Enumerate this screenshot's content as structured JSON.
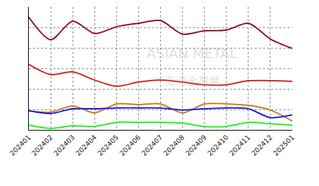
{
  "chart_data": {
    "type": "line",
    "categories": [
      "202401",
      "202402",
      "202403",
      "202404",
      "202405",
      "202406",
      "202407",
      "202408",
      "202409",
      "202410",
      "202411",
      "202412",
      "202501"
    ],
    "series": [
      {
        "color": "#8b1020",
        "values": [
          5.5,
          4.4,
          5.3,
          4.7,
          5.03,
          5.2,
          5.33,
          4.67,
          4.83,
          4.87,
          5.2,
          4.43,
          3.97
        ]
      },
      {
        "color": "#d42020",
        "values": [
          3.2,
          2.7,
          2.83,
          2.43,
          2.13,
          2.33,
          2.43,
          2.33,
          2.2,
          2.2,
          2.4,
          2.4,
          2.37
        ]
      },
      {
        "color": "#cc7a1a",
        "values": [
          0.93,
          0.87,
          1.17,
          0.83,
          1.27,
          1.23,
          1.27,
          0.83,
          1.27,
          1.27,
          1.2,
          0.97,
          0.43
        ]
      },
      {
        "color": "#1a1ae6",
        "values": [
          0.93,
          0.8,
          1.03,
          1.03,
          1.07,
          1.07,
          1.07,
          0.97,
          1.03,
          1.07,
          1.03,
          0.6,
          0.73
        ]
      },
      {
        "color": "#22ee22",
        "values": [
          0.23,
          0.07,
          0.2,
          0.17,
          0.37,
          0.37,
          0.37,
          0.33,
          0.17,
          0.17,
          0.37,
          0.3,
          0.23
        ]
      }
    ],
    "ylim": [
      0,
      6
    ],
    "yticks": [
      0,
      1,
      2,
      3,
      4,
      5,
      6
    ],
    "grid": true,
    "tick_labels": "x",
    "annotations": [
      "ASIAN METAL",
      "亚洲金属网"
    ]
  }
}
